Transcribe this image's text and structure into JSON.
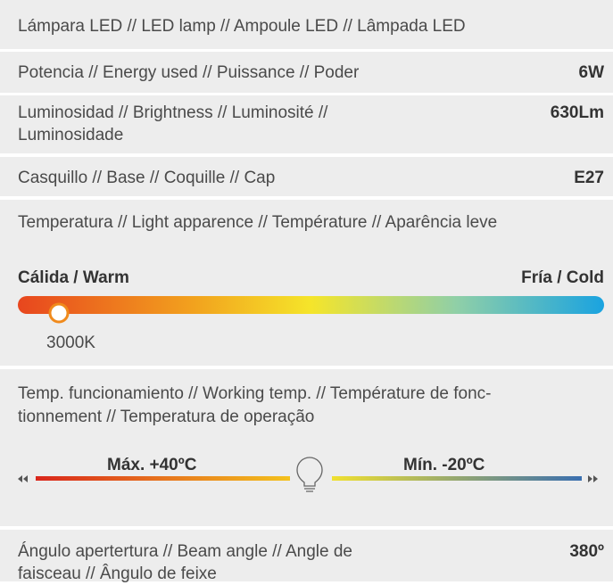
{
  "rows": [
    {
      "label": [
        "Lámpara LED // LED lamp // Ampoule LED // Lâmpada LED"
      ]
    },
    {
      "label": [
        "Potencia // Energy used // Puissance // Poder"
      ],
      "value": "6W"
    },
    {
      "label": [
        "Luminosidad // Brightness // Luminosité //",
        "Luminosidade"
      ],
      "value": "630Lm"
    },
    {
      "label": [
        "Casquillo // Base // Coquille // Cap"
      ],
      "value": "E27"
    }
  ],
  "color_temperature": {
    "label": [
      "Temperatura // Light apparence // Température // Aparência leve"
    ],
    "warm": "Cálida / Warm",
    "cold": "Fría / Cold",
    "marker": "3000K"
  },
  "working_temperature": {
    "label": [
      "Temp. funcionamiento // Working temp. // Température de fonc-",
      "tionnement // Temperatura de operação"
    ],
    "max": "Máx. +40ºC",
    "min": "Mín. -20ºC"
  },
  "beam_angle": {
    "label": [
      "Ángulo apertertura // Beam angle // Angle de",
      "faisceau // Ângulo de feixe"
    ],
    "value": "380º"
  }
}
